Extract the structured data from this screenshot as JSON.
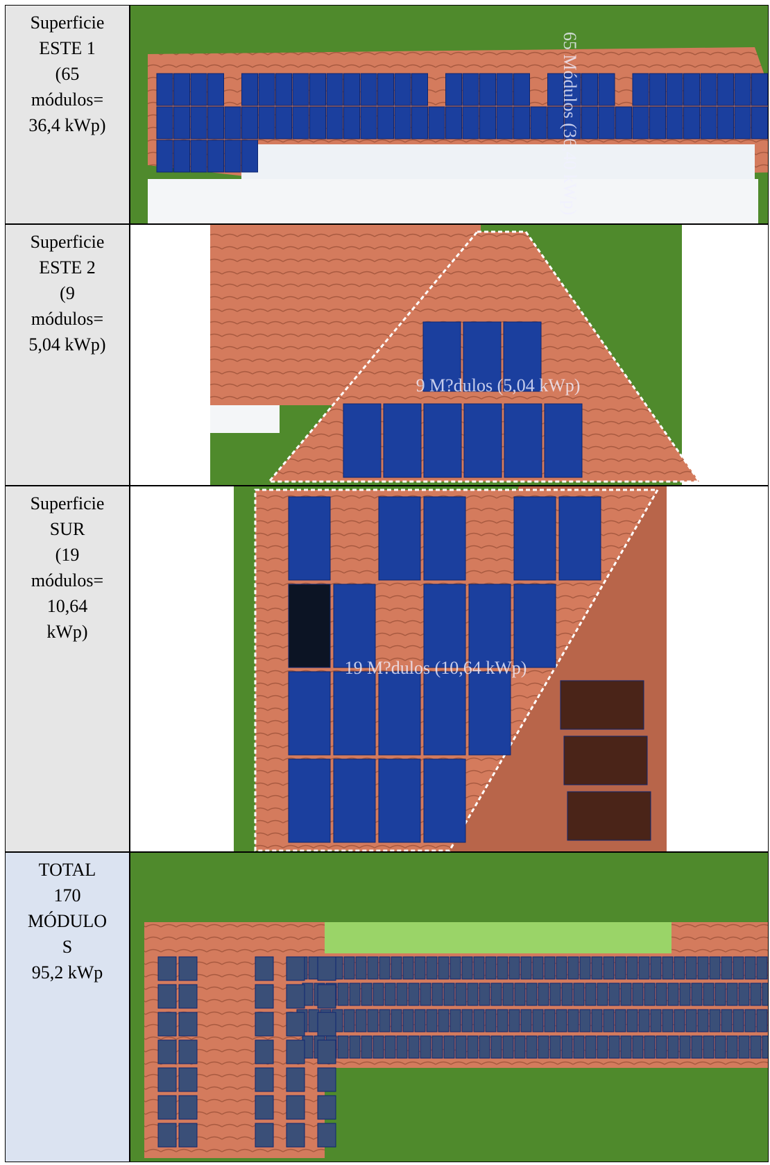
{
  "table": {
    "rows": [
      {
        "label": [
          "Superficie",
          "ESTE 1",
          "(65",
          "módulos=",
          "36,4 kWp)"
        ],
        "caption": "65 Módulos (36,40 kWp)"
      },
      {
        "label": [
          "Superficie",
          "ESTE 2",
          "(9",
          "módulos=",
          "5,04 kWp)"
        ],
        "caption": "9 M?dulos (5,04 kWp)"
      },
      {
        "label": [
          "Superficie",
          "SUR",
          "(19",
          "módulos=",
          "10,64",
          "kWp)"
        ],
        "caption": "19 M?dulos (10,64 kWp)"
      },
      {
        "label": [
          "TOTAL",
          "170",
          "MÓDULO",
          "S",
          "95,2 kWp"
        ]
      }
    ]
  }
}
